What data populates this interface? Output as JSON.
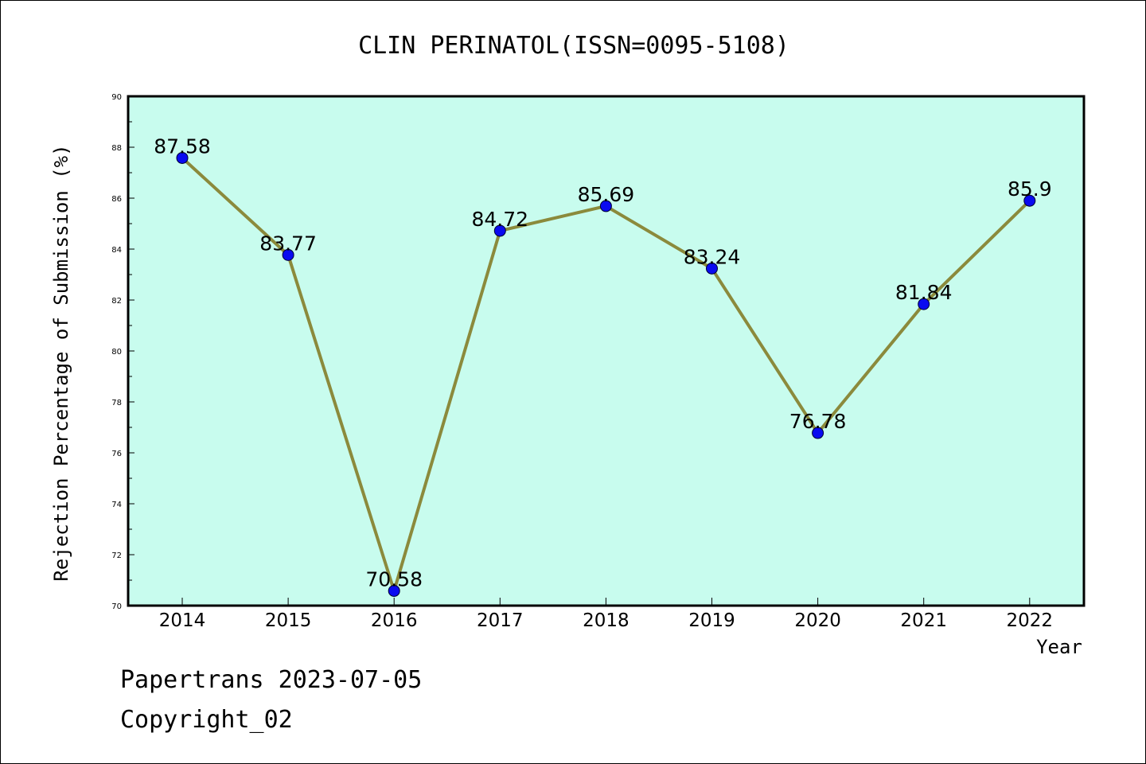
{
  "colors": {
    "plot_background": "#c8fcee",
    "line": "#8b8a3c",
    "marker": "#0a0af0"
  },
  "chart_data": {
    "type": "line",
    "title": "CLIN PERINATOL(ISSN=0095-5108)",
    "xlabel": "Year",
    "ylabel": "Rejection Percentage of Submission (%)",
    "categories": [
      "2014",
      "2015",
      "2016",
      "2017",
      "2018",
      "2019",
      "2020",
      "2021",
      "2022"
    ],
    "ylim": [
      70,
      90
    ],
    "yticks": [
      "70",
      "72",
      "74",
      "76",
      "78",
      "80",
      "82",
      "84",
      "86",
      "88",
      "90"
    ],
    "grid": false,
    "series": [
      {
        "values": [
          87.58,
          83.77,
          70.58,
          84.72,
          85.69,
          83.24,
          76.78,
          81.84,
          85.9
        ],
        "labels": [
          "87.58",
          "83.77",
          "70.58",
          "84.72",
          "85.69",
          "83.24",
          "76.78",
          "81.84",
          "85.9"
        ]
      }
    ]
  },
  "footer": {
    "line1": "Papertrans 2023-07-05",
    "line2": "Copyright_02"
  }
}
